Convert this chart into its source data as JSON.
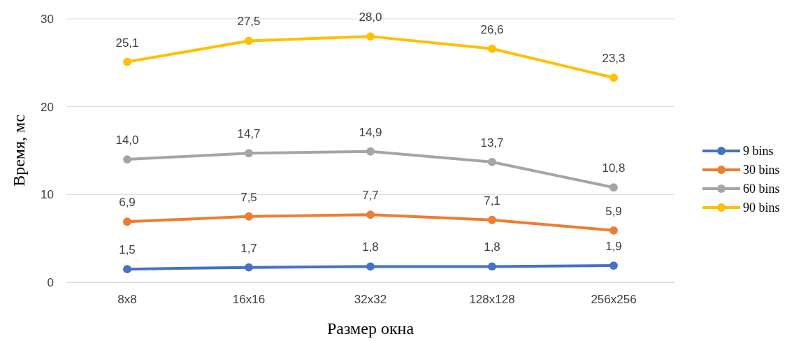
{
  "chart_data": {
    "type": "line",
    "xlabel": "Размер окна",
    "ylabel": "Время, мс",
    "categories": [
      "8x8",
      "16x16",
      "32x32",
      "128x128",
      "256x256"
    ],
    "ylim": [
      0,
      30
    ],
    "yticks": [
      0,
      10,
      20,
      30
    ],
    "grid": "y",
    "legend": "right",
    "marker": "circle",
    "line_style": "solid",
    "series": [
      {
        "name": "9 bins",
        "color": "#4472c4",
        "values": [
          1.5,
          1.7,
          1.8,
          1.8,
          1.9
        ],
        "value_labels": [
          "1,5",
          "1,7",
          "1,8",
          "1,8",
          "1,9"
        ]
      },
      {
        "name": "30 bins",
        "color": "#ed7d31",
        "values": [
          6.9,
          7.5,
          7.7,
          7.1,
          5.9
        ],
        "value_labels": [
          "6,9",
          "7,5",
          "7,7",
          "7,1",
          "5,9"
        ]
      },
      {
        "name": "60 bins",
        "color": "#a5a5a5",
        "values": [
          14.0,
          14.7,
          14.9,
          13.7,
          10.8
        ],
        "value_labels": [
          "14,0",
          "14,7",
          "14,9",
          "13,7",
          "10,8"
        ]
      },
      {
        "name": "90 bins",
        "color": "#ffc000",
        "values": [
          25.1,
          27.5,
          28.0,
          26.6,
          23.3
        ],
        "value_labels": [
          "25,1",
          "27,5",
          "28,0",
          "26,6",
          "23,3"
        ]
      }
    ]
  }
}
